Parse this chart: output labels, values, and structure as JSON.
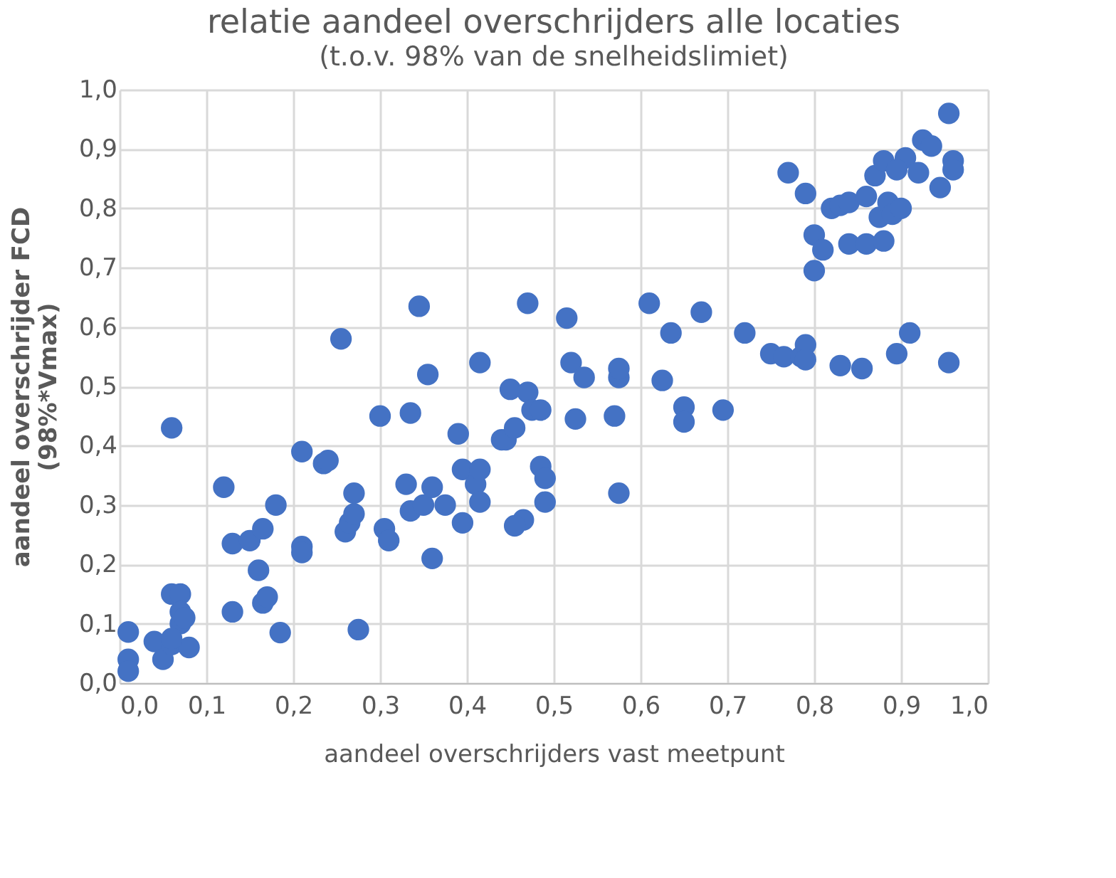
{
  "chart_data": {
    "type": "scatter",
    "title": "relatie aandeel overschrijders alle locaties",
    "subtitle": "(t.o.v. 98%  van de snelheidslimiet)",
    "xlabel": "aandeel overschrijders vast meetpunt",
    "ylabel": [
      "aandeel overschrijder FCD",
      "(98%*Vmax)"
    ],
    "xlim": [
      0,
      1
    ],
    "ylim": [
      0,
      1
    ],
    "xticks": [
      {
        "value": 0,
        "label": "0,0"
      },
      {
        "value": 0.1,
        "label": "0,1"
      },
      {
        "value": 0.2,
        "label": "0,2"
      },
      {
        "value": 0.3,
        "label": "0,3"
      },
      {
        "value": 0.4,
        "label": "0,4"
      },
      {
        "value": 0.5,
        "label": "0,5"
      },
      {
        "value": 0.6,
        "label": "0,6"
      },
      {
        "value": 0.7,
        "label": "0,7"
      },
      {
        "value": 0.8,
        "label": "0,8"
      },
      {
        "value": 0.9,
        "label": "0,9"
      },
      {
        "value": 1,
        "label": "1,0"
      }
    ],
    "yticks": [
      {
        "value": 0,
        "label": "0,0"
      },
      {
        "value": 0.1,
        "label": "0,1"
      },
      {
        "value": 0.2,
        "label": "0,2"
      },
      {
        "value": 0.3,
        "label": "0,3"
      },
      {
        "value": 0.4,
        "label": "0,4"
      },
      {
        "value": 0.5,
        "label": "0,5"
      },
      {
        "value": 0.6,
        "label": "0,6"
      },
      {
        "value": 0.7,
        "label": "0,7"
      },
      {
        "value": 0.8,
        "label": "0,8"
      },
      {
        "value": 0.9,
        "label": "0,9"
      },
      {
        "value": 1,
        "label": "1,0"
      }
    ],
    "grid": true,
    "marker": "circle",
    "series": [
      {
        "color": "#4472c4",
        "x": [
          0.01,
          0.01,
          0.01,
          0.04,
          0.05,
          0.06,
          0.06,
          0.06,
          0.07,
          0.07,
          0.07,
          0.075,
          0.08,
          0.06,
          0.12,
          0.13,
          0.13,
          0.15,
          0.165,
          0.16,
          0.165,
          0.17,
          0.18,
          0.185,
          0.21,
          0.21,
          0.21,
          0.235,
          0.24,
          0.255,
          0.26,
          0.265,
          0.27,
          0.27,
          0.275,
          0.3,
          0.305,
          0.31,
          0.33,
          0.335,
          0.335,
          0.345,
          0.35,
          0.355,
          0.36,
          0.36,
          0.375,
          0.39,
          0.395,
          0.395,
          0.41,
          0.415,
          0.415,
          0.415,
          0.44,
          0.445,
          0.455,
          0.45,
          0.47,
          0.47,
          0.475,
          0.465,
          0.455,
          0.485,
          0.485,
          0.49,
          0.49,
          0.515,
          0.52,
          0.525,
          0.535,
          0.57,
          0.575,
          0.575,
          0.575,
          0.61,
          0.625,
          0.635,
          0.65,
          0.65,
          0.67,
          0.695,
          0.72,
          0.75,
          0.765,
          0.785,
          0.79,
          0.79,
          0.83,
          0.855,
          0.895,
          0.91,
          0.955,
          0.77,
          0.79,
          0.8,
          0.8,
          0.81,
          0.82,
          0.83,
          0.84,
          0.84,
          0.86,
          0.86,
          0.87,
          0.875,
          0.88,
          0.88,
          0.885,
          0.89,
          0.9,
          0.905,
          0.92,
          0.925,
          0.935,
          0.945,
          0.955,
          0.96,
          0.96,
          0.895
        ],
        "values": [
          0.086,
          0.04,
          0.02,
          0.07,
          0.04,
          0.065,
          0.43,
          0.15,
          0.15,
          0.12,
          0.1,
          0.11,
          0.06,
          0.075,
          0.33,
          0.12,
          0.235,
          0.24,
          0.26,
          0.19,
          0.135,
          0.145,
          0.3,
          0.085,
          0.39,
          0.23,
          0.22,
          0.37,
          0.375,
          0.58,
          0.255,
          0.27,
          0.285,
          0.32,
          0.09,
          0.45,
          0.26,
          0.24,
          0.335,
          0.455,
          0.29,
          0.635,
          0.3,
          0.52,
          0.33,
          0.21,
          0.3,
          0.42,
          0.27,
          0.36,
          0.335,
          0.305,
          0.36,
          0.54,
          0.41,
          0.41,
          0.43,
          0.495,
          0.64,
          0.49,
          0.46,
          0.275,
          0.265,
          0.46,
          0.365,
          0.345,
          0.305,
          0.615,
          0.54,
          0.445,
          0.515,
          0.45,
          0.515,
          0.53,
          0.32,
          0.64,
          0.51,
          0.59,
          0.465,
          0.44,
          0.625,
          0.46,
          0.59,
          0.555,
          0.55,
          0.55,
          0.57,
          0.545,
          0.535,
          0.53,
          0.555,
          0.59,
          0.54,
          0.86,
          0.825,
          0.695,
          0.755,
          0.73,
          0.8,
          0.805,
          0.81,
          0.74,
          0.82,
          0.74,
          0.855,
          0.785,
          0.88,
          0.745,
          0.81,
          0.79,
          0.8,
          0.885,
          0.86,
          0.915,
          0.905,
          0.835,
          0.96,
          0.88,
          0.865,
          0.865
        ]
      }
    ]
  }
}
